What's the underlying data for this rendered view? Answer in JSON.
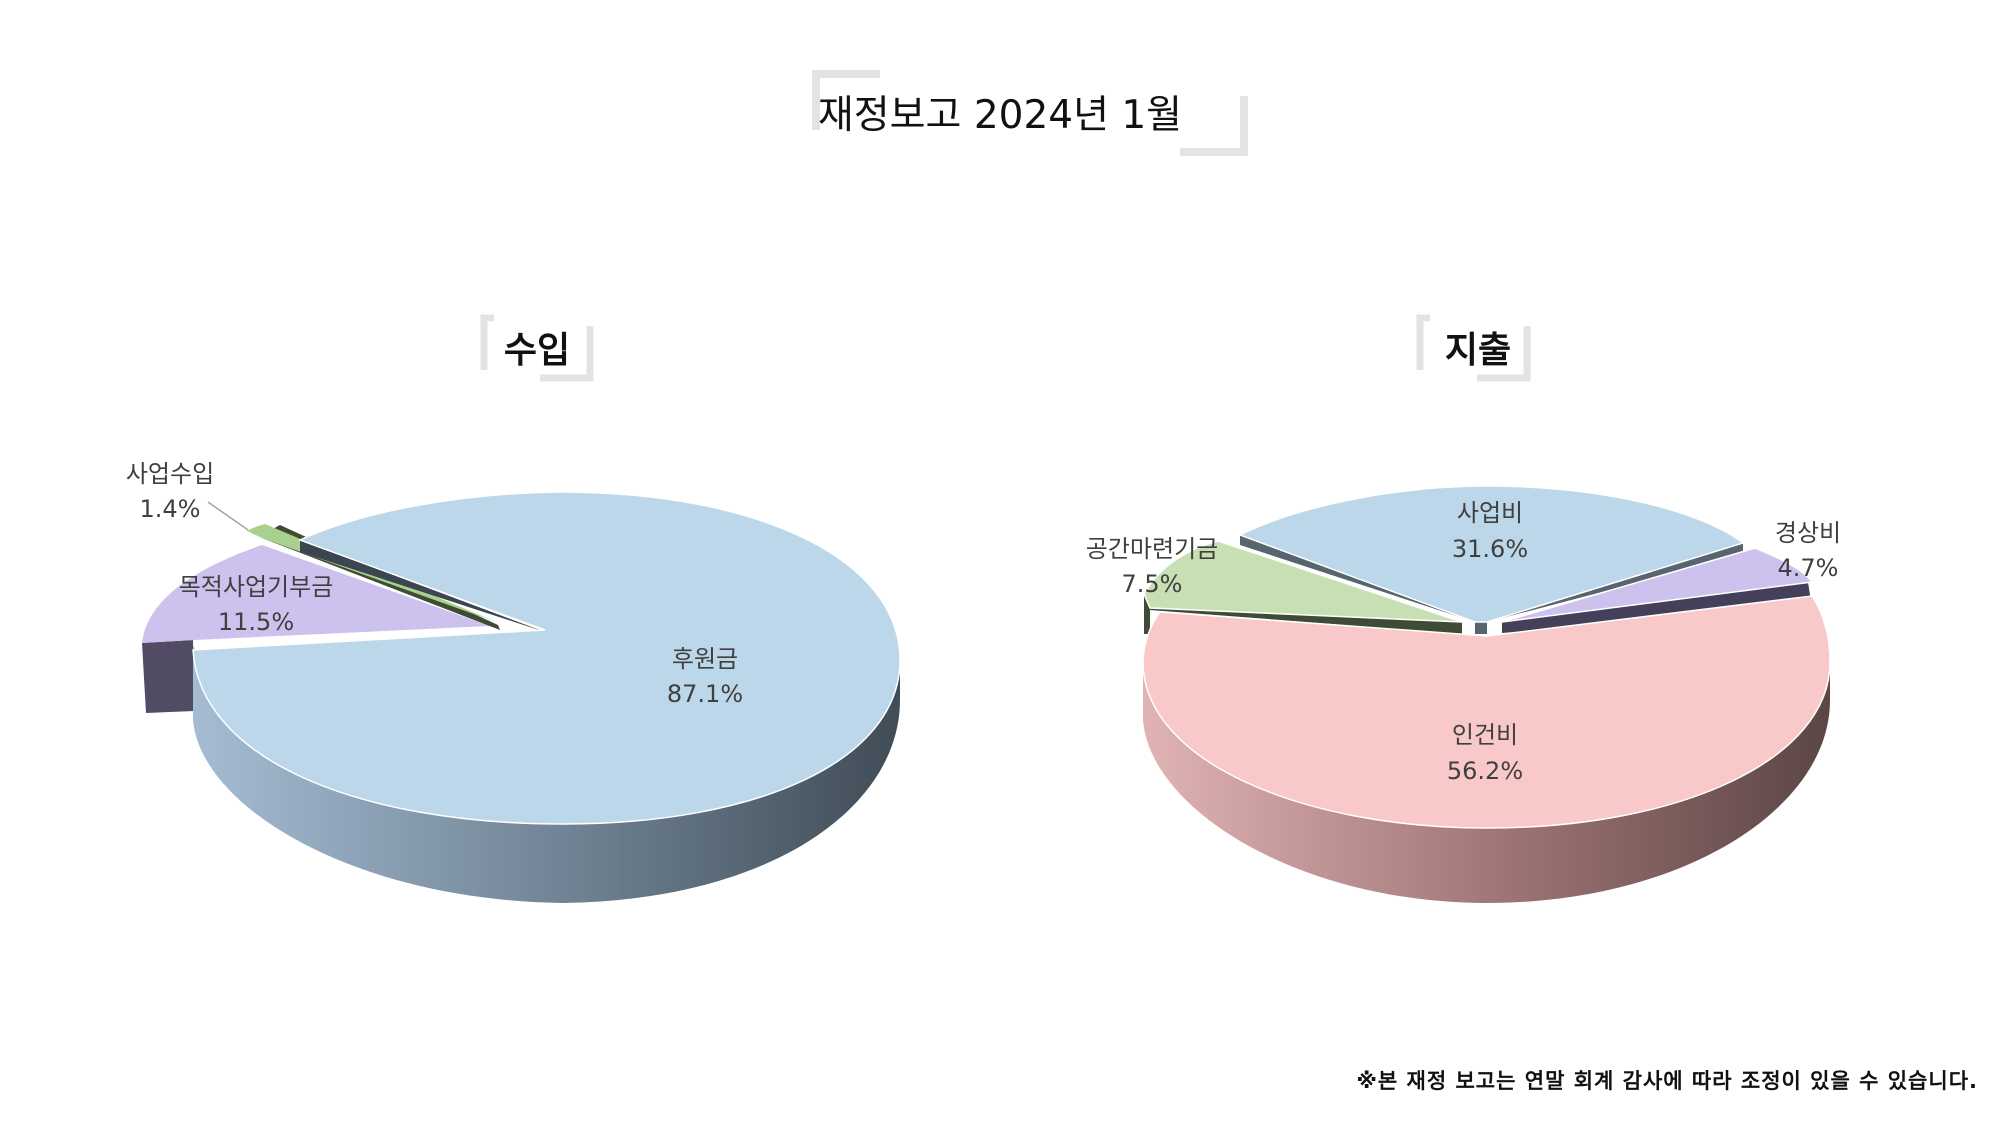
{
  "page": {
    "title": "재정보고 2024년 1월",
    "footnote": "※본 재정 보고는 연말 회계 감사에 따라 조정이 있을 수 있습니다."
  },
  "chart_data": [
    {
      "type": "pie",
      "style": "3d-exploded",
      "title": "수입",
      "slices": [
        {
          "label": "후원금",
          "value": 87.1,
          "color": "#bcd6ea"
        },
        {
          "label": "사업수입",
          "value": 1.4,
          "color": "#a9d18e"
        },
        {
          "label": "목적사업기부금",
          "value": 11.5,
          "color": "#cdc2ee"
        }
      ],
      "value_suffix": "%"
    },
    {
      "type": "pie",
      "style": "3d-exploded",
      "title": "지출",
      "slices": [
        {
          "label": "인건비",
          "value": 56.2,
          "color": "#f9c8c9"
        },
        {
          "label": "공간마련기금",
          "value": 7.5,
          "color": "#c6e0b4"
        },
        {
          "label": "사업비",
          "value": 31.6,
          "color": "#bcd6ea"
        },
        {
          "label": "경상비",
          "value": 4.7,
          "color": "#cdc2ee"
        }
      ],
      "value_suffix": "%"
    }
  ]
}
